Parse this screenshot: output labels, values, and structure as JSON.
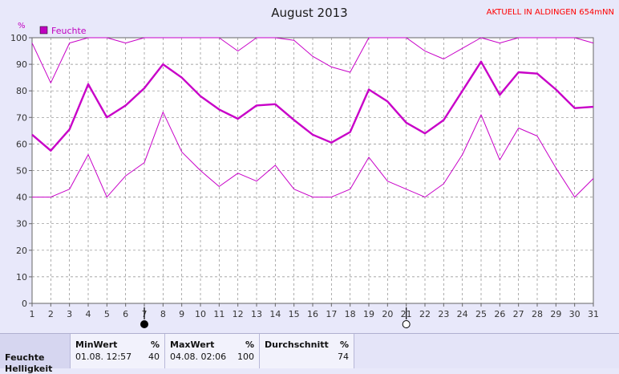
{
  "chart_data": {
    "type": "line",
    "title": "August 2013",
    "ylabel": "%",
    "ylim": [
      0,
      100
    ],
    "yticks": [
      0,
      10,
      20,
      30,
      40,
      50,
      60,
      70,
      80,
      90,
      100
    ],
    "x": [
      1,
      2,
      3,
      4,
      5,
      6,
      7,
      8,
      9,
      10,
      11,
      12,
      13,
      14,
      15,
      16,
      17,
      18,
      19,
      20,
      21,
      22,
      23,
      24,
      25,
      26,
      27,
      28,
      29,
      30,
      31
    ],
    "xlim": [
      1,
      31
    ],
    "legend": "Feuchte",
    "grid": true,
    "series": [
      {
        "role": "max",
        "values": [
          98,
          83,
          98,
          100,
          100,
          98,
          100,
          100,
          100,
          100,
          100,
          95,
          100,
          100,
          99,
          93,
          89,
          87,
          100,
          100,
          100,
          95,
          92,
          96,
          100,
          98,
          100,
          100,
          100,
          100,
          98
        ]
      },
      {
        "role": "mean",
        "values": [
          63.5,
          57.5,
          65.5,
          82.5,
          70,
          74.5,
          81,
          90,
          85,
          78,
          73,
          69.5,
          74.5,
          75,
          69,
          63.5,
          60.5,
          64.5,
          80.5,
          76,
          68,
          64,
          69,
          80,
          91,
          78.5,
          87,
          86.5,
          80.5,
          73.5,
          74
        ]
      },
      {
        "role": "min",
        "values": [
          40,
          40,
          43,
          56,
          40,
          48,
          53,
          72,
          57,
          50,
          44,
          49,
          46,
          52,
          43,
          40,
          40,
          43,
          55,
          46,
          43,
          40,
          45,
          56,
          71,
          54,
          66,
          63,
          51,
          40,
          47
        ]
      }
    ],
    "moon_markers": [
      {
        "day": 7,
        "phase": "new"
      },
      {
        "day": 21,
        "phase": "full"
      }
    ]
  },
  "colors": {
    "line": "#c800c8",
    "legend_swatch": "#c000c0",
    "grid": "#8a8a8a",
    "axis": "#666666"
  },
  "header": {
    "title": "August 2013",
    "status": "AKTUELL IN ALDINGEN 654mNN",
    "unit": "%",
    "legend_label": "Feuchte"
  },
  "stats": {
    "row_label": "Feuchte",
    "row_label_next": "Helligkeit",
    "min": {
      "header": "MinWert",
      "unit": "%",
      "date": "01.08.  12:57",
      "value": "40"
    },
    "max": {
      "header": "MaxWert",
      "unit": "%",
      "date": "04.08.  02:06",
      "value": "100"
    },
    "avg": {
      "header": "Durchschnitt",
      "unit": "%",
      "value": "74"
    }
  }
}
